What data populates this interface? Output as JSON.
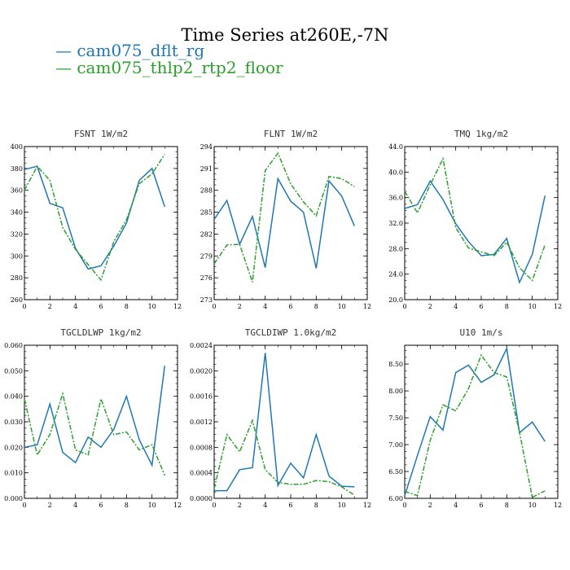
{
  "title": "Time Series at260E,-7N",
  "legend": [
    {
      "label": "— cam075_dflt_rg",
      "color": "#1f77b4"
    },
    {
      "label": "— cam075_thlp2_rtp2_floor",
      "color": "#2ca02c"
    }
  ],
  "chart_data": [
    {
      "type": "line",
      "title": "FSNT  1W/m2",
      "xlim": [
        0,
        12
      ],
      "xticks": [
        "0",
        "2",
        "4",
        "6",
        "8",
        "10",
        "12"
      ],
      "ylim": [
        260,
        400
      ],
      "yticks": [
        "260",
        "280",
        "300",
        "320",
        "340",
        "360",
        "380",
        "400"
      ],
      "x": [
        0,
        1,
        2,
        3,
        4,
        5,
        6,
        7,
        8,
        9,
        10,
        11
      ],
      "series": [
        {
          "name": "cam075_dflt_rg",
          "values": [
            379,
            382,
            348,
            344,
            307,
            288,
            291,
            309,
            330,
            369,
            380,
            345
          ]
        },
        {
          "name": "cam075_thlp2_rtp2_floor",
          "values": [
            360,
            382,
            369,
            326,
            306,
            292,
            278,
            313,
            333,
            366,
            375,
            393
          ]
        }
      ]
    },
    {
      "type": "line",
      "title": "FLNT  1W/m2",
      "xlim": [
        0,
        12
      ],
      "xticks": [
        "0",
        "2",
        "4",
        "6",
        "8",
        "10",
        "12"
      ],
      "ylim": [
        273,
        294
      ],
      "yticks": [
        "273",
        "276",
        "279",
        "282",
        "285",
        "288",
        "291",
        "294"
      ],
      "x": [
        0,
        1,
        2,
        3,
        4,
        5,
        6,
        7,
        8,
        9,
        10,
        11
      ],
      "series": [
        {
          "name": "cam075_dflt_rg",
          "values": [
            284,
            286.6,
            280.6,
            284.4,
            277.4,
            289.6,
            286.5,
            285.0,
            277.3,
            289.3,
            287.2,
            283.1
          ]
        },
        {
          "name": "cam075_thlp2_rtp2_floor",
          "values": [
            277.9,
            280.5,
            280.6,
            275.4,
            290.7,
            293.1,
            288.9,
            286.4,
            284.5,
            289.9,
            289.6,
            288.5
          ]
        }
      ]
    },
    {
      "type": "line",
      "title": "TMQ  1kg/m2",
      "xlim": [
        0,
        12
      ],
      "xticks": [
        "0",
        "2",
        "4",
        "6",
        "8",
        "10",
        "12"
      ],
      "ylim": [
        20,
        44
      ],
      "yticks": [
        "20.0",
        "24.0",
        "28.0",
        "32.0",
        "36.0",
        "40.0",
        "44.0"
      ],
      "x": [
        0,
        1,
        2,
        3,
        4,
        5,
        6,
        7,
        8,
        9,
        10,
        11
      ],
      "series": [
        {
          "name": "cam075_dflt_rg",
          "values": [
            34.3,
            34.9,
            38.6,
            35.7,
            31.9,
            29.1,
            26.9,
            27.1,
            29.6,
            22.7,
            27.1,
            36.3
          ]
        },
        {
          "name": "cam075_thlp2_rtp2_floor",
          "values": [
            37.0,
            33.6,
            38.0,
            42.1,
            31.3,
            28.1,
            27.5,
            26.9,
            29.0,
            25.0,
            23.0,
            28.6
          ]
        }
      ]
    },
    {
      "type": "line",
      "title": "TGCLDLWP  1kg/m2",
      "xlim": [
        0,
        12
      ],
      "xticks": [
        "0",
        "2",
        "4",
        "6",
        "8",
        "10",
        "12"
      ],
      "ylim": [
        0,
        0.06
      ],
      "yticks": [
        "0.000",
        "0.010",
        "0.020",
        "0.030",
        "0.040",
        "0.050",
        "0.060"
      ],
      "x": [
        0,
        1,
        2,
        3,
        4,
        5,
        6,
        7,
        8,
        9,
        10,
        11
      ],
      "series": [
        {
          "name": "cam075_dflt_rg",
          "values": [
            0.02,
            0.021,
            0.037,
            0.018,
            0.014,
            0.024,
            0.02,
            0.027,
            0.04,
            0.023,
            0.013,
            0.052
          ]
        },
        {
          "name": "cam075_thlp2_rtp2_floor",
          "values": [
            0.039,
            0.017,
            0.025,
            0.041,
            0.019,
            0.017,
            0.039,
            0.025,
            0.026,
            0.019,
            0.021,
            0.009
          ]
        }
      ]
    },
    {
      "type": "line",
      "title": "TGCLDIWP  1.0kg/m2",
      "xlim": [
        0,
        12
      ],
      "xticks": [
        "0",
        "2",
        "4",
        "6",
        "8",
        "10",
        "12"
      ],
      "ylim": [
        0,
        0.0024
      ],
      "yticks": [
        "0.0000",
        "0.0004",
        "0.0008",
        "0.0012",
        "0.0016",
        "0.0020",
        "0.0024"
      ],
      "x": [
        0,
        1,
        2,
        3,
        4,
        5,
        6,
        7,
        8,
        9,
        10,
        11
      ],
      "series": [
        {
          "name": "cam075_dflt_rg",
          "values": [
            0.00012,
            0.00012,
            0.00045,
            0.00048,
            0.00228,
            0.0002,
            0.00055,
            0.00032,
            0.001,
            0.00035,
            0.00019,
            0.00018
          ]
        },
        {
          "name": "cam075_thlp2_rtp2_floor",
          "values": [
            0.00015,
            0.001,
            0.00073,
            0.00122,
            0.00045,
            0.00025,
            0.00022,
            0.00022,
            0.00028,
            0.00026,
            0.00018,
            5e-05
          ]
        }
      ]
    },
    {
      "type": "line",
      "title": "U10  1m/s",
      "xlim": [
        0,
        12
      ],
      "xticks": [
        "0",
        "2",
        "4",
        "6",
        "8",
        "10",
        "12"
      ],
      "ylim": [
        6,
        8.85
      ],
      "yticks": [
        "6.00",
        "6.50",
        "7.00",
        "7.50",
        "8.00",
        "8.50"
      ],
      "x": [
        0,
        1,
        2,
        3,
        4,
        5,
        6,
        7,
        8,
        9,
        10,
        11
      ],
      "series": [
        {
          "name": "cam075_dflt_rg",
          "values": [
            6.05,
            6.8,
            7.52,
            7.27,
            8.34,
            8.48,
            8.16,
            8.3,
            8.79,
            7.22,
            7.42,
            7.06
          ]
        },
        {
          "name": "cam075_thlp2_rtp2_floor",
          "values": [
            6.13,
            6.05,
            7.08,
            7.74,
            7.63,
            8.04,
            8.67,
            8.34,
            8.26,
            7.23,
            6.02,
            6.14
          ]
        }
      ]
    }
  ]
}
